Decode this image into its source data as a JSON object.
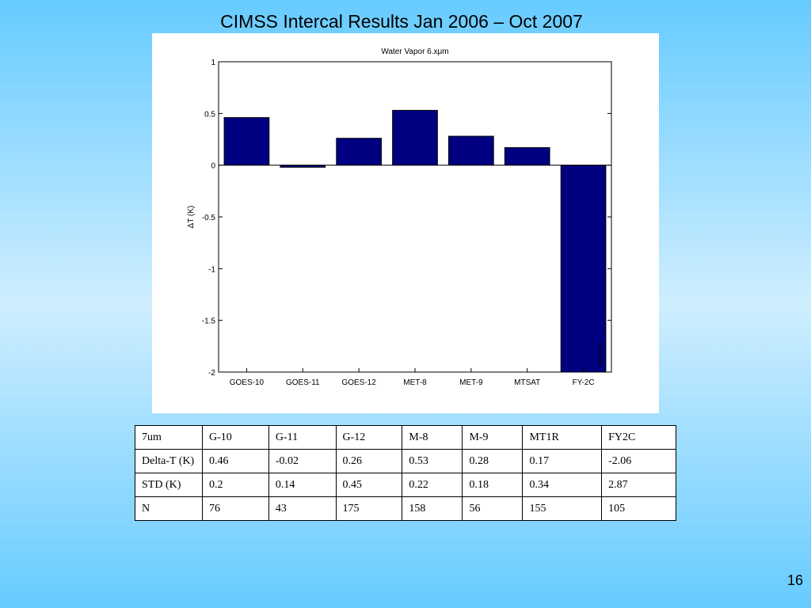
{
  "slide": {
    "title": "CIMSS Intercal Results Jan 2006 – Oct 2007",
    "page_number": "16"
  },
  "chart_data": {
    "type": "bar",
    "title": "Water Vapor 6.xμm",
    "xlabel": "",
    "ylabel": "ΔT (K)",
    "ylim": [
      -2,
      1
    ],
    "yticks": [
      1,
      0.5,
      0,
      -0.5,
      -1,
      -1.5,
      -2
    ],
    "ytick_labels": [
      "1",
      "0.5",
      "0",
      "-0.5",
      "-1",
      "-1.5",
      "-2"
    ],
    "categories": [
      "GOES-10",
      "GOES-11",
      "GOES-12",
      "MET-8",
      "MET-9",
      "MTSAT",
      "FY-2C"
    ],
    "values": [
      0.46,
      -0.02,
      0.26,
      0.53,
      0.28,
      0.17,
      -2.06
    ],
    "bar_color": "#000080",
    "watermark": "UW/CIMSS",
    "grid": false
  },
  "table": {
    "header": [
      "7um",
      "G-10",
      "G-11",
      "G-12",
      "M-8",
      "M-9",
      "MT1R",
      "FY2C"
    ],
    "rows": [
      [
        "Delta-T (K)",
        "0.46",
        "-0.02",
        "0.26",
        "0.53",
        "0.28",
        "0.17",
        "-2.06"
      ],
      [
        "STD (K)",
        "0.2",
        "0.14",
        "0.45",
        "0.22",
        "0.18",
        "0.34",
        "2.87"
      ],
      [
        "N",
        "76",
        "43",
        "175",
        "158",
        "56",
        "155",
        "105"
      ]
    ]
  }
}
